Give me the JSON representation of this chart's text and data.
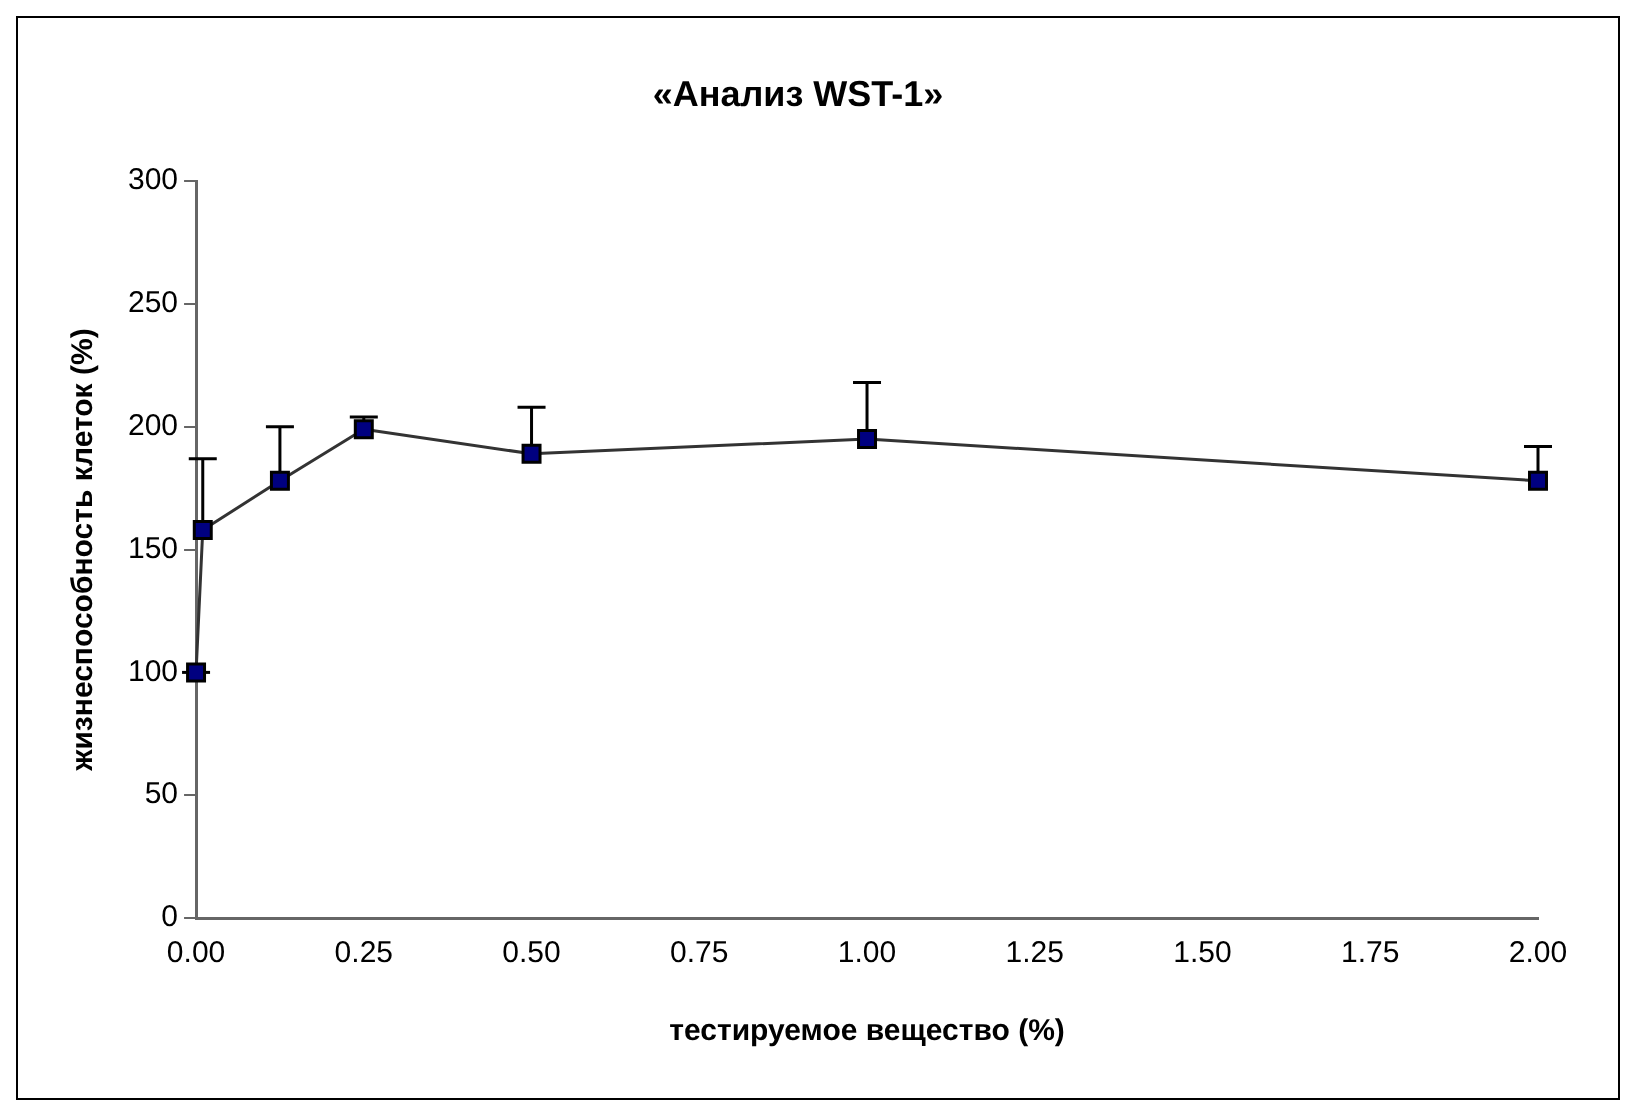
{
  "chart_data": {
    "type": "line",
    "title": "«Анализ WST-1»",
    "xlabel": "тестируемое вещество (%)",
    "ylabel": "жизнеспособность клеток (%)",
    "x": [
      0,
      0.01,
      0.125,
      0.25,
      0.5,
      1,
      2
    ],
    "series": [
      {
        "color": "#000080",
        "values": [
          100,
          158,
          178,
          199,
          189,
          195,
          178
        ],
        "errors": [
          [
            100,
            100
          ],
          [
            158,
            187
          ],
          [
            178,
            200
          ],
          [
            199,
            204
          ],
          [
            189,
            208
          ],
          [
            195,
            218
          ],
          [
            178,
            192
          ]
        ]
      }
    ],
    "xlim": [
      0,
      2
    ],
    "xticks": [
      {
        "value": 0,
        "label": "0.00"
      },
      {
        "value": 0.25,
        "label": "0.25"
      },
      {
        "value": 0.5,
        "label": "0.50"
      },
      {
        "value": 0.75,
        "label": "0.75"
      },
      {
        "value": 1,
        "label": "1.00"
      },
      {
        "value": 1.25,
        "label": "1.25"
      },
      {
        "value": 1.5,
        "label": "1.50"
      },
      {
        "value": 1.75,
        "label": "1.75"
      },
      {
        "value": 2,
        "label": "2.00"
      }
    ],
    "ylim": [
      0,
      300
    ],
    "yticks": [
      0,
      50,
      100,
      150,
      200,
      250,
      300
    ],
    "grid": false,
    "legend": false,
    "marker": "square",
    "line_style": "solid"
  }
}
